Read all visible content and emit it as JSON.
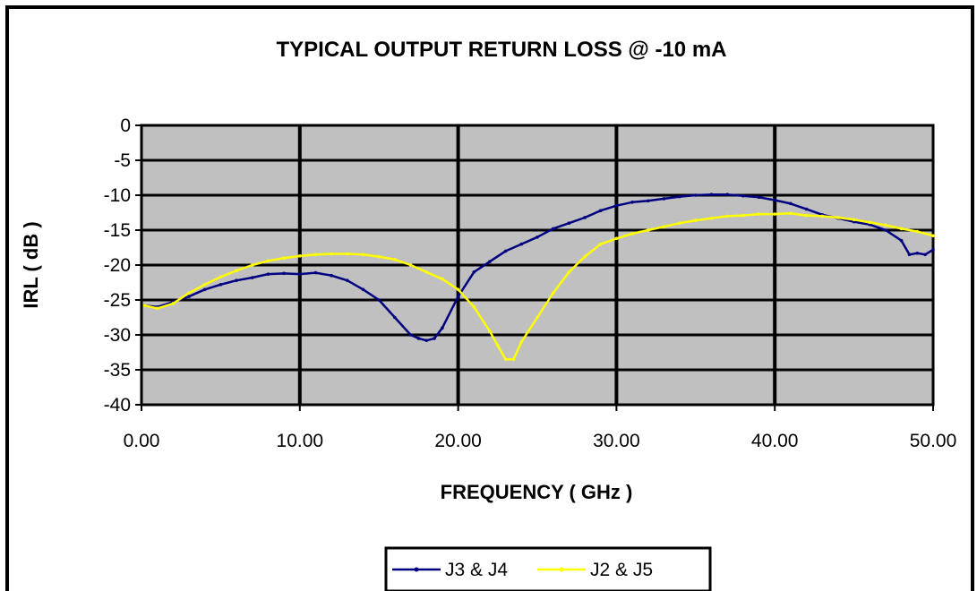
{
  "chart_data": {
    "type": "line",
    "title": "TYPICAL OUTPUT RETURN LOSS @ -10 mA",
    "xlabel": "FREQUENCY ( GHz )",
    "ylabel": "IRL ( dB )",
    "xlim": [
      0,
      50
    ],
    "ylim": [
      -40,
      0
    ],
    "x_ticks": [
      0,
      10,
      20,
      30,
      40,
      50
    ],
    "x_tick_labels": [
      "0.00",
      "10.00",
      "20.00",
      "30.00",
      "40.00",
      "50.00"
    ],
    "y_ticks": [
      0,
      -5,
      -10,
      -15,
      -20,
      -25,
      -30,
      -35,
      -40
    ],
    "y_tick_labels": [
      "0",
      "-5",
      "-10",
      "-15",
      "-20",
      "-25",
      "-30",
      "-35",
      "-40"
    ],
    "grid": true,
    "legend_position": "bottom-center",
    "plot_background": "#c0c0c0",
    "series": [
      {
        "name": "J3 & J4",
        "color": "#000080",
        "x": [
          0.2,
          1,
          2,
          3,
          4,
          5,
          6,
          7,
          8,
          9,
          10,
          11,
          12,
          13,
          14,
          15,
          16,
          17,
          17.5,
          18,
          18.5,
          19,
          20,
          21,
          22,
          23,
          24,
          25,
          26,
          27,
          28,
          29,
          30,
          31,
          32,
          33,
          34,
          35,
          36,
          37,
          38,
          39,
          40,
          41,
          42,
          43,
          44,
          45,
          46,
          47,
          48,
          48.5,
          49,
          49.5,
          50
        ],
        "y": [
          -25.8,
          -26.0,
          -25.3,
          -24.5,
          -23.5,
          -22.8,
          -22.2,
          -21.8,
          -21.3,
          -21.2,
          -21.3,
          -21.1,
          -21.5,
          -22.2,
          -23.5,
          -25.0,
          -27.5,
          -30.0,
          -30.5,
          -30.8,
          -30.5,
          -29.0,
          -24.5,
          -21.0,
          -19.5,
          -18.0,
          -17.0,
          -16.0,
          -14.8,
          -14.0,
          -13.2,
          -12.2,
          -11.5,
          -11.0,
          -10.8,
          -10.5,
          -10.2,
          -10.0,
          -9.9,
          -9.9,
          -10.1,
          -10.3,
          -10.7,
          -11.2,
          -12.0,
          -12.8,
          -13.3,
          -13.8,
          -14.2,
          -15.0,
          -16.5,
          -18.5,
          -18.3,
          -18.5,
          -17.8
        ]
      },
      {
        "name": "J2 & J5",
        "color": "#ffff00",
        "x": [
          0.2,
          1,
          2,
          3,
          4,
          5,
          6,
          7,
          8,
          9,
          10,
          11,
          12,
          13,
          14,
          15,
          16,
          17,
          18,
          19,
          20,
          21,
          22,
          22.5,
          23,
          23.5,
          24,
          25,
          26,
          27,
          28,
          29,
          30,
          31,
          32,
          33,
          34,
          35,
          36,
          37,
          38,
          39,
          40,
          41,
          42,
          43,
          44,
          45,
          46,
          47,
          48,
          49,
          50
        ],
        "y": [
          -25.8,
          -26.2,
          -25.5,
          -24.0,
          -22.8,
          -21.7,
          -20.8,
          -20.0,
          -19.4,
          -19.0,
          -18.7,
          -18.5,
          -18.4,
          -18.4,
          -18.5,
          -18.8,
          -19.2,
          -20.0,
          -21.0,
          -22.0,
          -23.5,
          -26.0,
          -29.5,
          -31.5,
          -33.5,
          -33.5,
          -31.0,
          -27.5,
          -24.0,
          -21.0,
          -18.8,
          -17.0,
          -16.2,
          -15.5,
          -15.0,
          -14.5,
          -14.0,
          -13.6,
          -13.3,
          -13.0,
          -12.9,
          -12.7,
          -12.7,
          -12.6,
          -12.9,
          -13.0,
          -13.2,
          -13.5,
          -13.9,
          -14.3,
          -14.8,
          -15.2,
          -15.8
        ]
      }
    ]
  }
}
